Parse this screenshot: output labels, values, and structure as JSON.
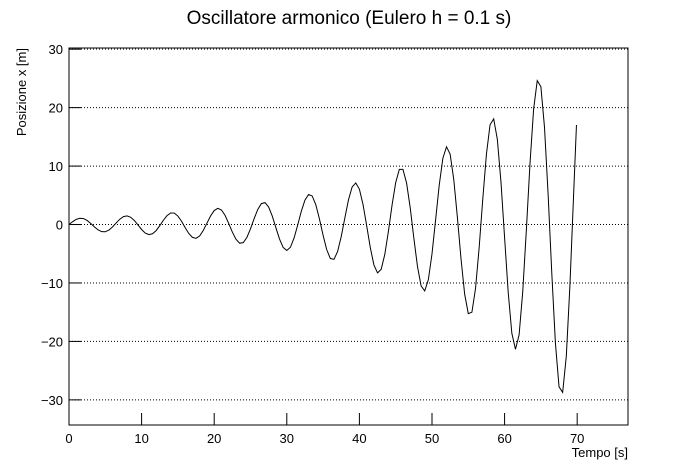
{
  "chart_data": {
    "type": "line",
    "title": "Oscillatore armonico (Eulero h = 0.1 s)",
    "x_label": "Tempo [s]",
    "y_label": "Posizione x [m]",
    "x": [
      0,
      0.5,
      1,
      1.5,
      2,
      2.5,
      3,
      3.5,
      4,
      4.5,
      5,
      5.5,
      6,
      6.5,
      7,
      7.5,
      8,
      8.5,
      9,
      9.5,
      10,
      10.5,
      11,
      11.5,
      12,
      12.5,
      13,
      13.5,
      14,
      14.5,
      15,
      15.5,
      16,
      16.5,
      17,
      17.5,
      18,
      18.5,
      19,
      19.5,
      20,
      20.5,
      21,
      21.5,
      22,
      22.5,
      23,
      23.5,
      24,
      24.5,
      25,
      25.5,
      26,
      26.5,
      27,
      27.5,
      28,
      28.5,
      29,
      29.5,
      30,
      30.5,
      31,
      31.5,
      32,
      32.5,
      33,
      33.5,
      34,
      34.5,
      35,
      35.5,
      36,
      36.5,
      37,
      37.5,
      38,
      38.5,
      39,
      39.5,
      40,
      40.5,
      41,
      41.5,
      42,
      42.5,
      43,
      43.5,
      44,
      44.5,
      45,
      45.5,
      46,
      46.5,
      47,
      47.5,
      48,
      48.5,
      49,
      49.5,
      50,
      50.5,
      51,
      51.5,
      52,
      52.5,
      53,
      53.5,
      54,
      54.5,
      55,
      55.5,
      56,
      56.5,
      57,
      57.5,
      58,
      58.5,
      59,
      59.5,
      60,
      60.5,
      61,
      61.5,
      62,
      62.5,
      63,
      63.5,
      64,
      64.5,
      65,
      65.5,
      66,
      66.5,
      67,
      67.5,
      68,
      68.5,
      69,
      69.5,
      69.9
    ],
    "series": [
      {
        "color": "#000000",
        "values": [
          0,
          0.49,
          0.88,
          1.07,
          1.01,
          0.69,
          0.18,
          -0.4,
          -0.91,
          -1.22,
          -1.24,
          -0.95,
          -0.4,
          0.27,
          0.91,
          1.35,
          1.48,
          1.24,
          0.69,
          -0.07,
          -0.85,
          -1.46,
          -1.73,
          -1.58,
          -1.04,
          -0.2,
          0.73,
          1.52,
          1.97,
          1.96,
          1.45,
          0.56,
          -0.53,
          -1.53,
          -2.2,
          -2.36,
          -1.94,
          -1.0,
          0.23,
          1.46,
          2.39,
          2.77,
          2.48,
          1.56,
          0.19,
          -1.29,
          -2.52,
          -3.19,
          -3.1,
          -2.22,
          -0.74,
          0.99,
          2.57,
          3.58,
          3.75,
          2.99,
          1.45,
          -0.54,
          -2.49,
          -3.92,
          -4.44,
          -3.89,
          -2.32,
          -0.1,
          2.26,
          4.18,
          5.14,
          4.88,
          3.38,
          0.95,
          -1.83,
          -4.3,
          -5.82,
          -5.96,
          -4.62,
          -2.05,
          1.15,
          4.24,
          6.42,
          7.11,
          6.05,
          3.43,
          -0.18,
          -3.93,
          -6.91,
          -8.28,
          -7.67,
          -5.11,
          -1.14,
          3.32,
          7.17,
          9.43,
          9.44,
          7.1,
          2.87,
          -2.31,
          -7.17,
          -10.5,
          -11.35,
          -9.43,
          -5.04,
          0.83,
          6.78,
          11.35,
          13.3,
          12.03,
          7.69,
          1.21,
          -5.9,
          -11.91,
          -15.25,
          -15.0,
          -10.89,
          -3.89,
          4.43,
          12.06,
          17.07,
          18.07,
          14.59,
          7.32,
          -2.2,
          -11.63,
          -18.61,
          -21.34,
          -18.88,
          -11.52,
          -0.93,
          10.43,
          19.75,
          24.62,
          23.59,
          16.61,
          5.09,
          -8.27,
          -20.24,
          -27.77,
          -28.73,
          -22.57,
          -10.44,
          4.83,
          17.02
        ]
      }
    ],
    "xlim": [
      0,
      77
    ],
    "xticks": [
      0,
      10,
      20,
      30,
      40,
      50,
      60,
      70
    ],
    "ylim": [
      -34.3,
      30.2
    ],
    "yticks": [
      {
        "value": -30,
        "label": "−30"
      },
      {
        "value": -20,
        "label": "−20"
      },
      {
        "value": -10,
        "label": "−10"
      },
      0,
      10,
      20,
      30
    ],
    "grid": true
  }
}
